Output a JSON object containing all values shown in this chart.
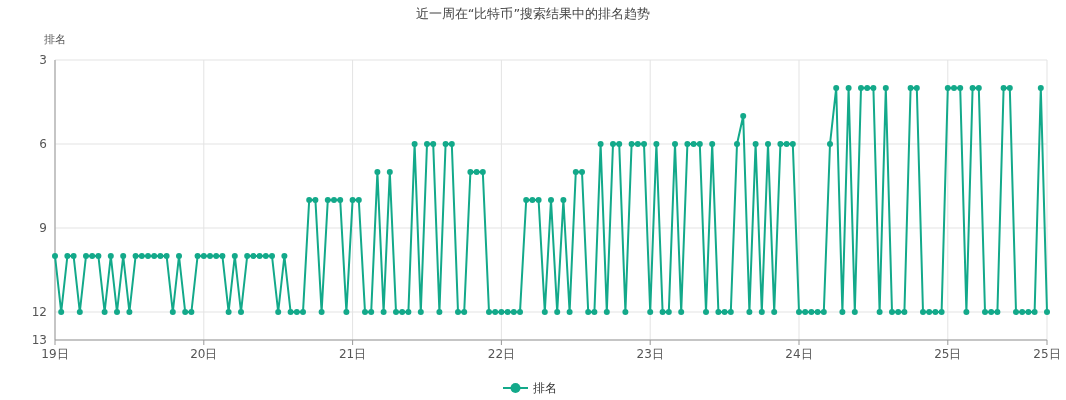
{
  "chart_data": {
    "type": "line",
    "title": "近一周在“比特币”搜索结果中的排名趋势",
    "ylabel": "排名",
    "categories": [
      "19日",
      null,
      null,
      null,
      null,
      null,
      null,
      null,
      null,
      null,
      null,
      null,
      null,
      null,
      null,
      null,
      null,
      null,
      null,
      null,
      null,
      null,
      null,
      null,
      "20日",
      null,
      null,
      null,
      null,
      null,
      null,
      null,
      null,
      null,
      null,
      null,
      null,
      null,
      null,
      null,
      null,
      null,
      null,
      null,
      null,
      null,
      null,
      null,
      "21日",
      null,
      null,
      null,
      null,
      null,
      null,
      null,
      null,
      null,
      null,
      null,
      null,
      null,
      null,
      null,
      null,
      null,
      null,
      null,
      null,
      null,
      null,
      null,
      "22日",
      null,
      null,
      null,
      null,
      null,
      null,
      null,
      null,
      null,
      null,
      null,
      null,
      null,
      null,
      null,
      null,
      null,
      null,
      null,
      null,
      null,
      null,
      null,
      "23日",
      null,
      null,
      null,
      null,
      null,
      null,
      null,
      null,
      null,
      null,
      null,
      null,
      null,
      null,
      null,
      null,
      null,
      null,
      null,
      null,
      null,
      null,
      null,
      "24日",
      null,
      null,
      null,
      null,
      null,
      null,
      null,
      null,
      null,
      null,
      null,
      null,
      null,
      null,
      null,
      null,
      null,
      null,
      null,
      null,
      null,
      null,
      null,
      "25日",
      null,
      null,
      null,
      null,
      null,
      null,
      null,
      null,
      null,
      null,
      null,
      null,
      null,
      null,
      null,
      "25日"
    ],
    "series": [
      {
        "name": "排名",
        "color": "#13a98a",
        "values": [
          10,
          12,
          10,
          10,
          12,
          10,
          10,
          10,
          12,
          10,
          12,
          10,
          12,
          10,
          10,
          10,
          10,
          10,
          10,
          12,
          10,
          12,
          12,
          10,
          10,
          10,
          10,
          10,
          12,
          10,
          12,
          10,
          10,
          10,
          10,
          10,
          12,
          10,
          12,
          12,
          12,
          8,
          8,
          12,
          8,
          8,
          8,
          12,
          8,
          8,
          12,
          12,
          7,
          12,
          7,
          12,
          12,
          12,
          6,
          12,
          6,
          6,
          12,
          6,
          6,
          12,
          12,
          7,
          7,
          7,
          12,
          12,
          12,
          12,
          12,
          12,
          8,
          8,
          8,
          12,
          8,
          12,
          8,
          12,
          7,
          7,
          12,
          12,
          6,
          12,
          6,
          6,
          12,
          6,
          6,
          6,
          12,
          6,
          12,
          12,
          6,
          12,
          6,
          6,
          6,
          12,
          6,
          12,
          12,
          12,
          6,
          5,
          12,
          6,
          12,
          6,
          12,
          6,
          6,
          6,
          12,
          12,
          12,
          12,
          12,
          6,
          4,
          12,
          4,
          12,
          4,
          4,
          4,
          12,
          4,
          12,
          12,
          12,
          4,
          4,
          12,
          12,
          12,
          12,
          4,
          4,
          4,
          12,
          4,
          4,
          12,
          12,
          12,
          4,
          4,
          12,
          12,
          12,
          12,
          4,
          12
        ]
      }
    ],
    "ylim": [
      13,
      3
    ],
    "yticks": [
      3,
      6,
      9,
      12,
      13
    ],
    "grid": true,
    "legend": "bottom",
    "marker": "circle",
    "line_style": "solid"
  }
}
